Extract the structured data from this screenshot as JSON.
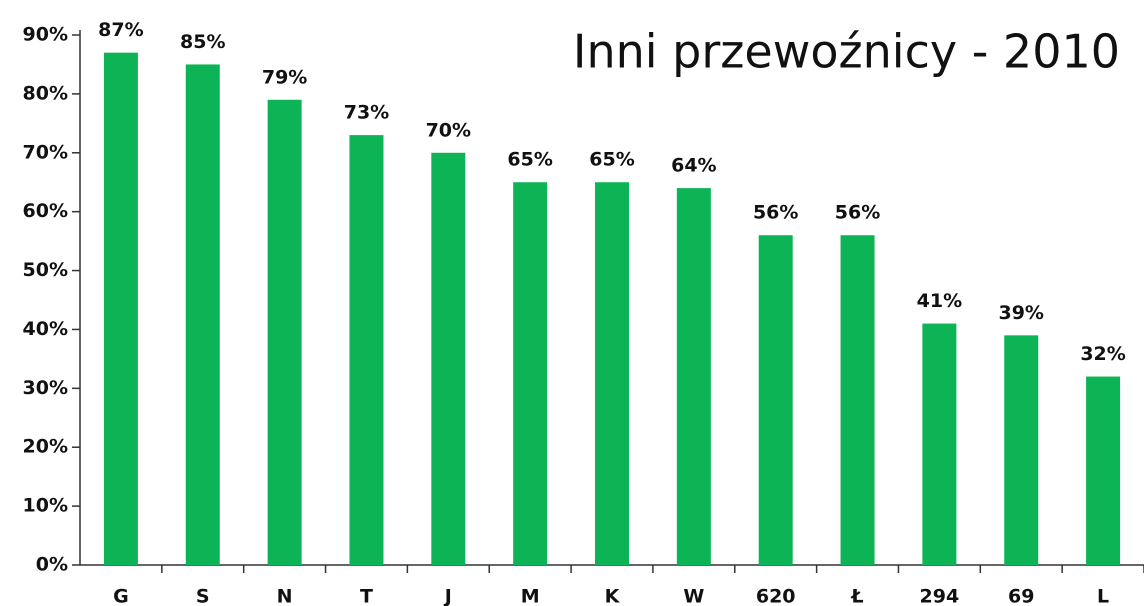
{
  "chart_data": {
    "type": "bar",
    "title": "Inni przewoźnicy - 2010",
    "categories": [
      "G",
      "S",
      "N",
      "T",
      "J",
      "M",
      "K",
      "W",
      "620",
      "Ł",
      "294",
      "69",
      "L"
    ],
    "values": [
      87,
      85,
      79,
      73,
      70,
      65,
      65,
      64,
      56,
      56,
      41,
      39,
      32
    ],
    "value_labels": [
      "87%",
      "85%",
      "79%",
      "73%",
      "70%",
      "65%",
      "65%",
      "64%",
      "56%",
      "56%",
      "41%",
      "39%",
      "32%"
    ],
    "color": "#0db456",
    "ylim": [
      0,
      90
    ],
    "yticks": [
      {
        "value": 0,
        "label": "0%"
      },
      {
        "value": 10,
        "label": "10%"
      },
      {
        "value": 20,
        "label": "20%"
      },
      {
        "value": 30,
        "label": "30%"
      },
      {
        "value": 40,
        "label": "40%"
      },
      {
        "value": 50,
        "label": "50%"
      },
      {
        "value": 60,
        "label": "60%"
      },
      {
        "value": 70,
        "label": "70%"
      },
      {
        "value": 80,
        "label": "80%"
      },
      {
        "value": 90,
        "label": "90%"
      }
    ],
    "grid": false
  }
}
